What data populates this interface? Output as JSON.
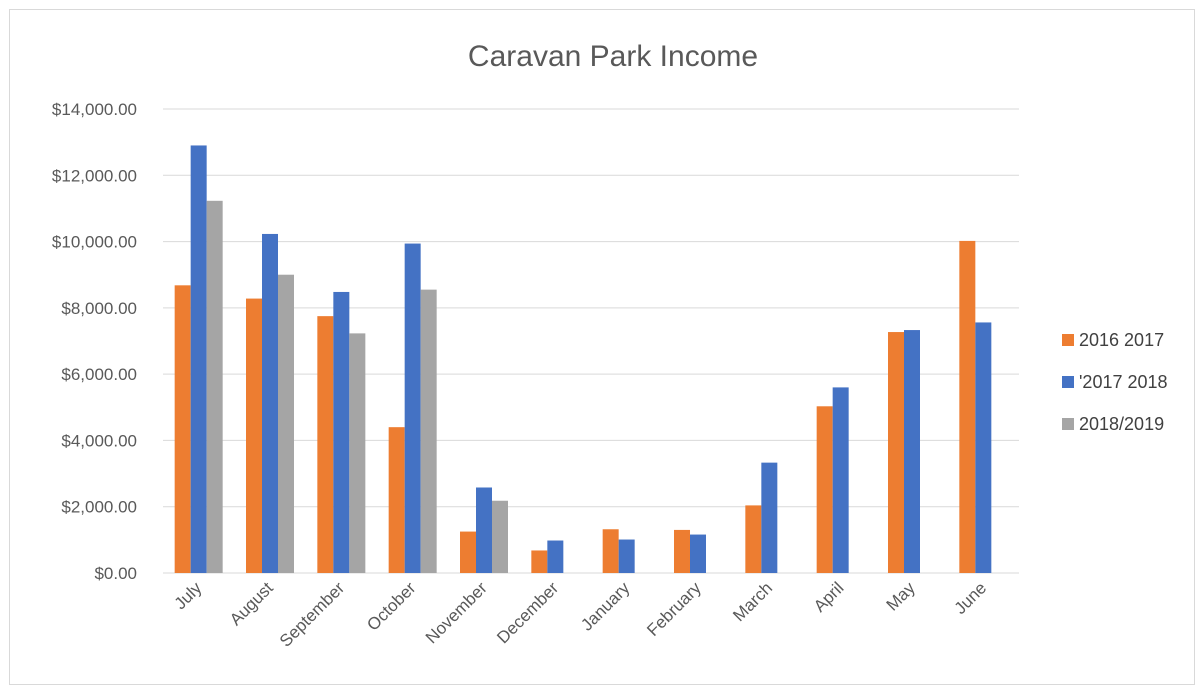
{
  "chart_data": {
    "type": "bar",
    "title": "Caravan Park Income",
    "xlabel": "",
    "ylabel": "",
    "categories": [
      "July",
      "August",
      "September",
      "October",
      "November",
      "December",
      "January",
      "February",
      "March",
      "April",
      "May",
      "June"
    ],
    "series": [
      {
        "name": "2016 2017",
        "color": "#ed7d31",
        "values": [
          8680,
          8280,
          7750,
          4400,
          1250,
          680,
          1320,
          1300,
          2040,
          5030,
          7270,
          10020
        ]
      },
      {
        "name": "'2017 2018",
        "color": "#4472c4",
        "values": [
          12900,
          10230,
          8480,
          9940,
          2580,
          980,
          1010,
          1160,
          3330,
          5600,
          7330,
          7560
        ]
      },
      {
        "name": "2018/2019",
        "color": "#a5a5a5",
        "values": [
          11230,
          9000,
          7230,
          8550,
          2180,
          null,
          null,
          null,
          null,
          null,
          null,
          null
        ]
      }
    ],
    "ylim": [
      0,
      14000
    ],
    "yticks": [
      0,
      2000,
      4000,
      6000,
      8000,
      10000,
      12000,
      14000
    ],
    "ytick_labels": [
      "$0.00",
      "$2,000.00",
      "$4,000.00",
      "$6,000.00",
      "$8,000.00",
      "$10,000.00",
      "$12,000.00",
      "$14,000.00"
    ],
    "grid": true,
    "legend_position": "right"
  }
}
